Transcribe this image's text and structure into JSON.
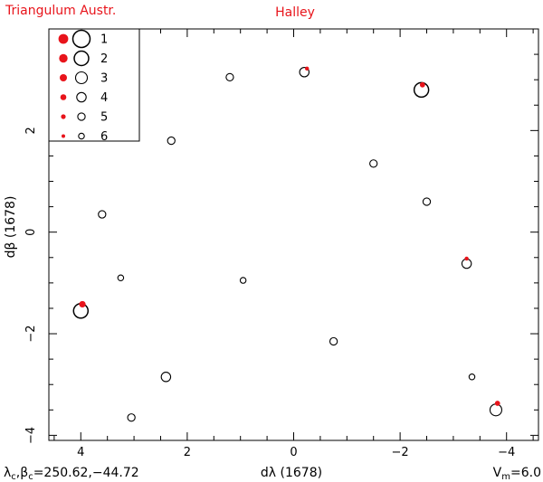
{
  "chart_data": {
    "type": "scatter",
    "header_left": "Triangulum Austr.",
    "title": "Halley",
    "xlabel": "dλ (1678)",
    "ylabel": "dβ (1678)",
    "xlim": [
      4.6,
      -4.6
    ],
    "ylim": [
      -4.1,
      4.0
    ],
    "x_ticks": [
      4,
      2,
      0,
      -2,
      -4
    ],
    "x_tick_labels": [
      "4",
      "2",
      "0",
      "−2",
      "−4"
    ],
    "y_ticks": [
      -4,
      -2,
      0,
      2
    ],
    "y_tick_labels": [
      "−4",
      "−2",
      "0",
      "2"
    ],
    "footer_left": {
      "lambda": "λ",
      "beta": "β",
      "sub": "c",
      "sep": ",",
      "values": "=250.62,−44.72"
    },
    "footer_right": {
      "v": "V",
      "sub": "m",
      "value": "=6.0"
    },
    "legend": {
      "placement": "top-left",
      "items": [
        {
          "label": "1",
          "magnitude": 1
        },
        {
          "label": "2",
          "magnitude": 2
        },
        {
          "label": "3",
          "magnitude": 3
        },
        {
          "label": "4",
          "magnitude": 4
        },
        {
          "label": "5",
          "magnitude": 5
        },
        {
          "label": "6",
          "magnitude": 6
        }
      ]
    },
    "colors": {
      "accent": "#e8141b",
      "axes": "#000000"
    },
    "stars": [
      {
        "x": 4.0,
        "y": -1.55,
        "magnitude": 2
      },
      {
        "x": 3.6,
        "y": 0.35,
        "magnitude": 5
      },
      {
        "x": 3.25,
        "y": -0.9,
        "magnitude": 6
      },
      {
        "x": 3.05,
        "y": -3.65,
        "magnitude": 5
      },
      {
        "x": 2.4,
        "y": -2.85,
        "magnitude": 4
      },
      {
        "x": 2.3,
        "y": 1.8,
        "magnitude": 5
      },
      {
        "x": 1.2,
        "y": 3.05,
        "magnitude": 5
      },
      {
        "x": 0.95,
        "y": -0.95,
        "magnitude": 6
      },
      {
        "x": -0.2,
        "y": 3.15,
        "magnitude": 4
      },
      {
        "x": -0.75,
        "y": -2.15,
        "magnitude": 5
      },
      {
        "x": -1.5,
        "y": 1.35,
        "magnitude": 5
      },
      {
        "x": -2.4,
        "y": 2.8,
        "magnitude": 2
      },
      {
        "x": -2.5,
        "y": 0.6,
        "magnitude": 5
      },
      {
        "x": -3.25,
        "y": -0.62,
        "magnitude": 4
      },
      {
        "x": -3.35,
        "y": -2.85,
        "magnitude": 6
      },
      {
        "x": -3.8,
        "y": -3.5,
        "magnitude": 3
      }
    ],
    "comet_points": [
      {
        "x": 3.97,
        "y": -1.42,
        "magnitude": 3
      },
      {
        "x": -0.25,
        "y": 3.22,
        "magnitude": 5
      },
      {
        "x": -2.42,
        "y": 2.9,
        "magnitude": 4
      },
      {
        "x": -3.25,
        "y": -0.52,
        "magnitude": 5
      },
      {
        "x": -3.83,
        "y": -3.37,
        "magnitude": 4
      }
    ]
  }
}
